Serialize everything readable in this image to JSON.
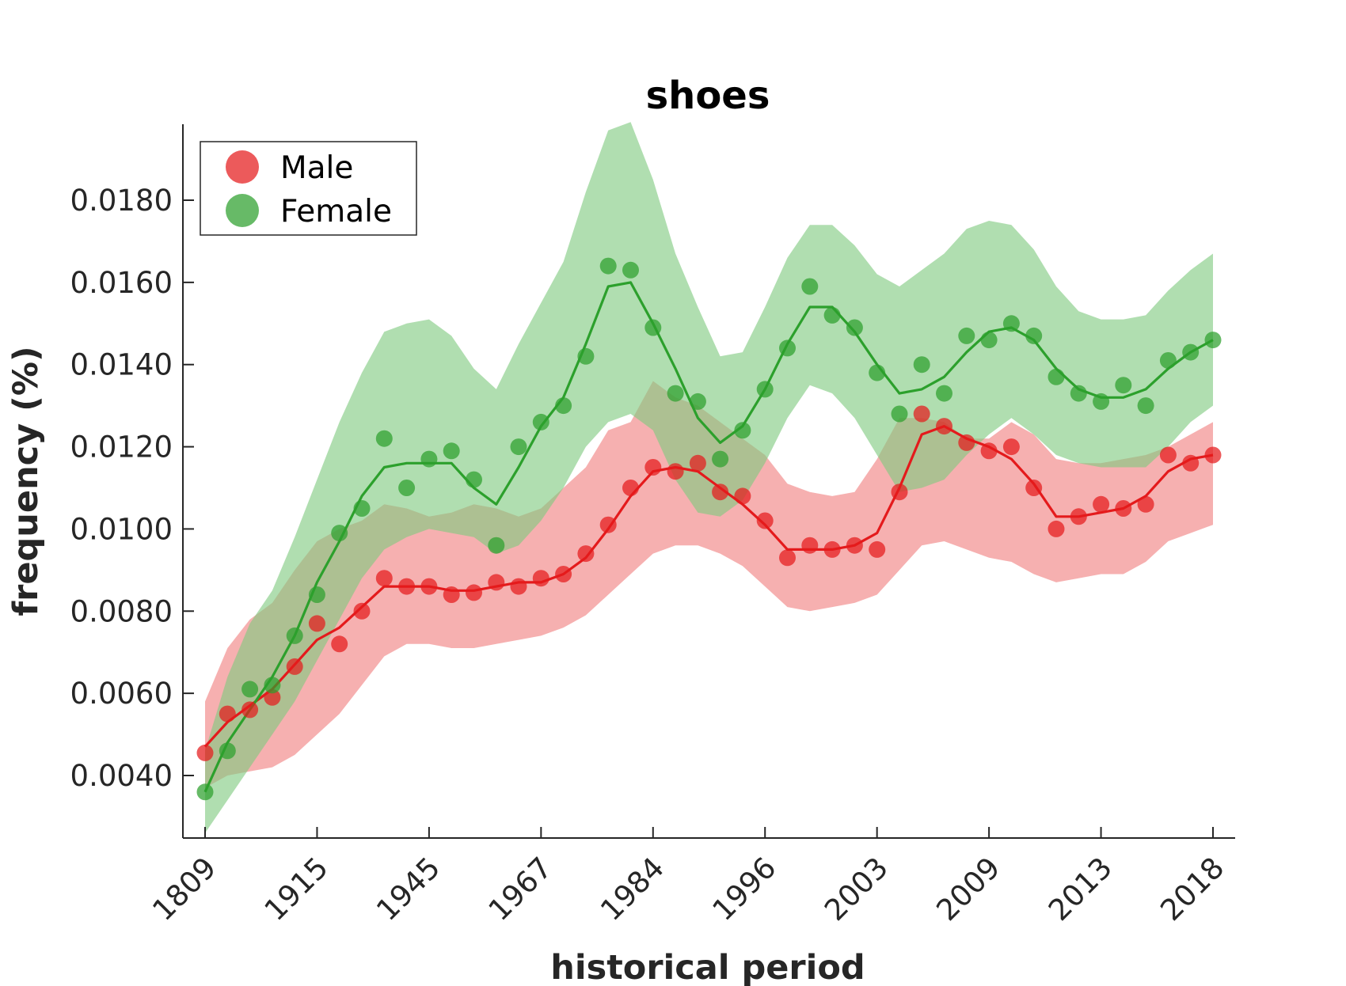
{
  "chart_data": {
    "type": "line",
    "title": "shoes",
    "xlabel": "historical period",
    "ylabel": "frequency (%)",
    "ylim": [
      0.0025,
      0.0199
    ],
    "x_tick_labels": [
      "1809",
      "1915",
      "1945",
      "1967",
      "1984",
      "1996",
      "2003",
      "2009",
      "2013",
      "2018"
    ],
    "y_ticks": [
      0.004,
      0.006,
      0.008,
      0.01,
      0.012,
      0.014,
      0.016,
      0.018
    ],
    "y_tick_labels": [
      "0.0040",
      "0.0060",
      "0.0080",
      "0.0100",
      "0.0120",
      "0.0140",
      "0.0160",
      "0.0180"
    ],
    "legend_position": "top-left",
    "grid": false,
    "series": [
      {
        "name": "Male",
        "color": "#e41a1c",
        "band_color": "#f08080",
        "points": [
          0.00455,
          0.0055,
          0.0056,
          0.0059,
          0.00665,
          0.0077,
          0.0072,
          0.008,
          0.0088,
          0.0086,
          0.0086,
          0.0084,
          0.00845,
          0.0087,
          0.0086,
          0.0088,
          0.0089,
          0.0094,
          0.0101,
          0.011,
          0.0115,
          0.0114,
          0.0116,
          0.0109,
          0.0108,
          0.0102,
          0.0093,
          0.0096,
          0.0095,
          0.0096,
          0.0095,
          0.0109,
          0.0128,
          0.0125,
          0.0121,
          0.0119,
          0.012,
          0.011,
          0.01,
          0.0103,
          0.0106,
          0.0105,
          0.0106,
          0.0118,
          0.0116,
          0.0118
        ],
        "line": [
          0.0047,
          0.0053,
          0.0057,
          0.0061,
          0.0067,
          0.0073,
          0.0076,
          0.0081,
          0.0086,
          0.0086,
          0.0086,
          0.0085,
          0.0085,
          0.0086,
          0.0087,
          0.0087,
          0.0089,
          0.0093,
          0.01,
          0.0108,
          0.0114,
          0.0115,
          0.0114,
          0.011,
          0.0106,
          0.0101,
          0.0095,
          0.0095,
          0.0095,
          0.0096,
          0.0099,
          0.011,
          0.0123,
          0.0125,
          0.0122,
          0.012,
          0.0117,
          0.0111,
          0.0103,
          0.0103,
          0.0104,
          0.0105,
          0.0108,
          0.0114,
          0.0117,
          0.0118
        ],
        "lower": [
          0.0037,
          0.004,
          0.0041,
          0.0042,
          0.0045,
          0.005,
          0.0055,
          0.0062,
          0.0069,
          0.0072,
          0.0072,
          0.0071,
          0.0071,
          0.0072,
          0.0073,
          0.0074,
          0.0076,
          0.0079,
          0.0084,
          0.0089,
          0.0094,
          0.0096,
          0.0096,
          0.0094,
          0.0091,
          0.0086,
          0.0081,
          0.008,
          0.0081,
          0.0082,
          0.0084,
          0.009,
          0.0096,
          0.0097,
          0.0095,
          0.0093,
          0.0092,
          0.0089,
          0.0087,
          0.0088,
          0.0089,
          0.0089,
          0.0092,
          0.0097,
          0.0099,
          0.0101
        ],
        "upper": [
          0.0058,
          0.0071,
          0.0078,
          0.0082,
          0.009,
          0.0097,
          0.01,
          0.0102,
          0.0106,
          0.0105,
          0.0103,
          0.0104,
          0.0106,
          0.0105,
          0.0103,
          0.0105,
          0.011,
          0.0115,
          0.0124,
          0.0126,
          0.0136,
          0.0132,
          0.013,
          0.0126,
          0.0122,
          0.0118,
          0.0111,
          0.0109,
          0.0108,
          0.0109,
          0.0117,
          0.0127,
          0.0127,
          0.0126,
          0.0122,
          0.0122,
          0.0126,
          0.0123,
          0.0117,
          0.0116,
          0.0116,
          0.0117,
          0.0118,
          0.012,
          0.0123,
          0.0126
        ]
      },
      {
        "name": "Female",
        "color": "#2ca02c",
        "band_color": "#7fc97f",
        "points": [
          0.0036,
          0.0046,
          0.0061,
          0.0062,
          0.0074,
          0.0084,
          0.0099,
          0.0105,
          0.0122,
          0.011,
          0.0117,
          0.0119,
          0.0112,
          0.0096,
          0.012,
          0.0126,
          0.013,
          0.0142,
          0.0164,
          0.0163,
          0.0149,
          0.0133,
          0.0131,
          0.0117,
          0.0124,
          0.0134,
          0.0144,
          0.0159,
          0.0152,
          0.0149,
          0.0138,
          0.0128,
          0.014,
          0.0133,
          0.0147,
          0.0146,
          0.015,
          0.0147,
          0.0137,
          0.0133,
          0.0131,
          0.0135,
          0.013,
          0.0141,
          0.0143,
          0.0146
        ],
        "line": [
          0.0036,
          0.0048,
          0.0056,
          0.0064,
          0.0074,
          0.0087,
          0.0097,
          0.0108,
          0.0115,
          0.0116,
          0.0116,
          0.0116,
          0.011,
          0.0106,
          0.0115,
          0.0125,
          0.0132,
          0.0145,
          0.0159,
          0.016,
          0.015,
          0.0139,
          0.0127,
          0.0121,
          0.0125,
          0.0134,
          0.0145,
          0.0154,
          0.0154,
          0.0148,
          0.014,
          0.0133,
          0.0134,
          0.0137,
          0.0143,
          0.0148,
          0.0149,
          0.0146,
          0.0139,
          0.0134,
          0.0132,
          0.0132,
          0.0134,
          0.0139,
          0.0143,
          0.0146
        ],
        "lower": [
          0.0026,
          0.0034,
          0.0042,
          0.005,
          0.0058,
          0.0068,
          0.0078,
          0.0088,
          0.0095,
          0.0098,
          0.01,
          0.0099,
          0.0098,
          0.0094,
          0.0096,
          0.0102,
          0.011,
          0.012,
          0.0126,
          0.0128,
          0.0124,
          0.0112,
          0.0104,
          0.0103,
          0.0107,
          0.0116,
          0.0127,
          0.0135,
          0.0133,
          0.0127,
          0.0118,
          0.0109,
          0.011,
          0.0112,
          0.0118,
          0.0123,
          0.0127,
          0.0123,
          0.0118,
          0.0116,
          0.0115,
          0.0115,
          0.0115,
          0.012,
          0.0126,
          0.013
        ],
        "upper": [
          0.0046,
          0.0064,
          0.0077,
          0.0085,
          0.0098,
          0.0112,
          0.0126,
          0.0138,
          0.0148,
          0.015,
          0.0151,
          0.0147,
          0.0139,
          0.0134,
          0.0145,
          0.0155,
          0.0165,
          0.0182,
          0.0197,
          0.0199,
          0.0185,
          0.0167,
          0.0154,
          0.0142,
          0.0143,
          0.0154,
          0.0166,
          0.0174,
          0.0174,
          0.0169,
          0.0162,
          0.0159,
          0.0163,
          0.0167,
          0.0173,
          0.0175,
          0.0174,
          0.0168,
          0.0159,
          0.0153,
          0.0151,
          0.0151,
          0.0152,
          0.0158,
          0.0163,
          0.0167
        ]
      }
    ]
  }
}
